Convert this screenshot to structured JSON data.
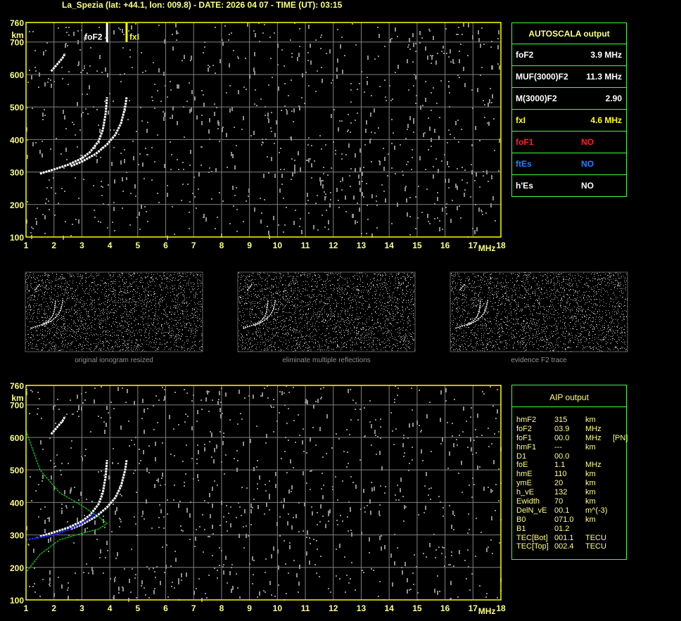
{
  "header": {
    "title": "La_Spezia (lat: +44.1, lon: 009.8) - DATE: 2026 04 07 - TIME (UT): 03:15"
  },
  "autoscala": {
    "title": "AUTOSCALA output",
    "rows": [
      {
        "label": "foF2",
        "value": "3.9 MHz",
        "color": "#ffffff"
      },
      {
        "label": "MUF(3000)F2",
        "value": "11.3 MHz",
        "color": "#ffffff"
      },
      {
        "label": "M(3000)F2",
        "value": "2.90",
        "color": "#ffffff"
      },
      {
        "label": "fxI",
        "value": "4.6 MHz",
        "color": "#ffff00"
      },
      {
        "label": "foF1",
        "value": "NO",
        "color": "#ff2020"
      },
      {
        "label": "ftEs",
        "value": "NO",
        "color": "#2080ff"
      },
      {
        "label": "h'Es",
        "value": "NO",
        "color": "#ffffff"
      }
    ]
  },
  "aip": {
    "title": "AIP output",
    "rows": [
      [
        "hmF2",
        "315",
        "km"
      ],
      [
        "foF2",
        "03.9",
        "MHz"
      ],
      [
        "foF1",
        "00.0",
        "MHz",
        "[PN]"
      ],
      [
        "hmF1",
        "---",
        "km"
      ],
      [
        "D1",
        "00.0",
        ""
      ],
      [
        "foE",
        "1.1",
        "MHz"
      ],
      [
        "hmE",
        "110",
        "km"
      ],
      [
        "ymE",
        "20",
        "km"
      ],
      [
        "h_vE",
        "132",
        "km"
      ],
      [
        "Ewidth",
        "70",
        "km"
      ],
      [
        "DelN_vE",
        "00.1",
        "m^(-3)"
      ],
      [
        "B0",
        "071.0",
        "km"
      ],
      [
        "B1",
        "01.2",
        ""
      ],
      [
        "TEC[Bot]",
        "001.1",
        "TECU"
      ],
      [
        "TEC[Top]",
        "002.4",
        "TECU"
      ]
    ]
  },
  "captions": [
    "original ionogram resized",
    "eliminate multiple reflections",
    "evidence F2 trace"
  ],
  "chart_data": {
    "type": "scatter",
    "xlabel": "MHz",
    "ylabel": "km",
    "xlim": [
      1,
      18
    ],
    "ylim": [
      100,
      760
    ],
    "x_ticks": [
      1,
      2,
      3,
      4,
      5,
      6,
      7,
      8,
      9,
      10,
      11,
      12,
      13,
      14,
      15,
      16,
      17,
      18
    ],
    "y_ticks": [
      100,
      200,
      300,
      400,
      500,
      600,
      700,
      760
    ],
    "grid": true,
    "markers": [
      {
        "label": "foF2",
        "x": 3.9,
        "color": "#ffffff"
      },
      {
        "label": "fxI",
        "x": 4.6,
        "color": "#ffff00"
      }
    ],
    "o_trace": [
      [
        1.5,
        295
      ],
      [
        2,
        308
      ],
      [
        2.5,
        322
      ],
      [
        3,
        342
      ],
      [
        3.3,
        362
      ],
      [
        3.6,
        395
      ],
      [
        3.75,
        430
      ],
      [
        3.85,
        480
      ],
      [
        3.9,
        530
      ]
    ],
    "x_trace": [
      [
        2.6,
        318
      ],
      [
        3,
        332
      ],
      [
        3.5,
        356
      ],
      [
        3.9,
        385
      ],
      [
        4.2,
        415
      ],
      [
        4.4,
        450
      ],
      [
        4.55,
        500
      ],
      [
        4.6,
        530
      ]
    ],
    "upper_trace": [
      [
        1.9,
        610
      ],
      [
        2.1,
        630
      ],
      [
        2.3,
        650
      ],
      [
        2.4,
        665
      ]
    ],
    "profile_green": [
      [
        1,
        620
      ],
      [
        1.5,
        500
      ],
      [
        2.2,
        430
      ],
      [
        3,
        390
      ],
      [
        3.6,
        355
      ],
      [
        3.9,
        335
      ],
      [
        3.6,
        318
      ],
      [
        3,
        305
      ],
      [
        2.2,
        285
      ],
      [
        1.5,
        240
      ],
      [
        1,
        185
      ]
    ],
    "trace_blue": [
      [
        1,
        285
      ],
      [
        1.5,
        292
      ],
      [
        2,
        300
      ],
      [
        2.5,
        315
      ],
      [
        3,
        335
      ],
      [
        3.3,
        352
      ],
      [
        3.5,
        370
      ]
    ],
    "colors": {
      "axis": "#ffff00",
      "grid": "#808080",
      "profile": "#00e000",
      "aip_trace": "#2020ff"
    }
  }
}
